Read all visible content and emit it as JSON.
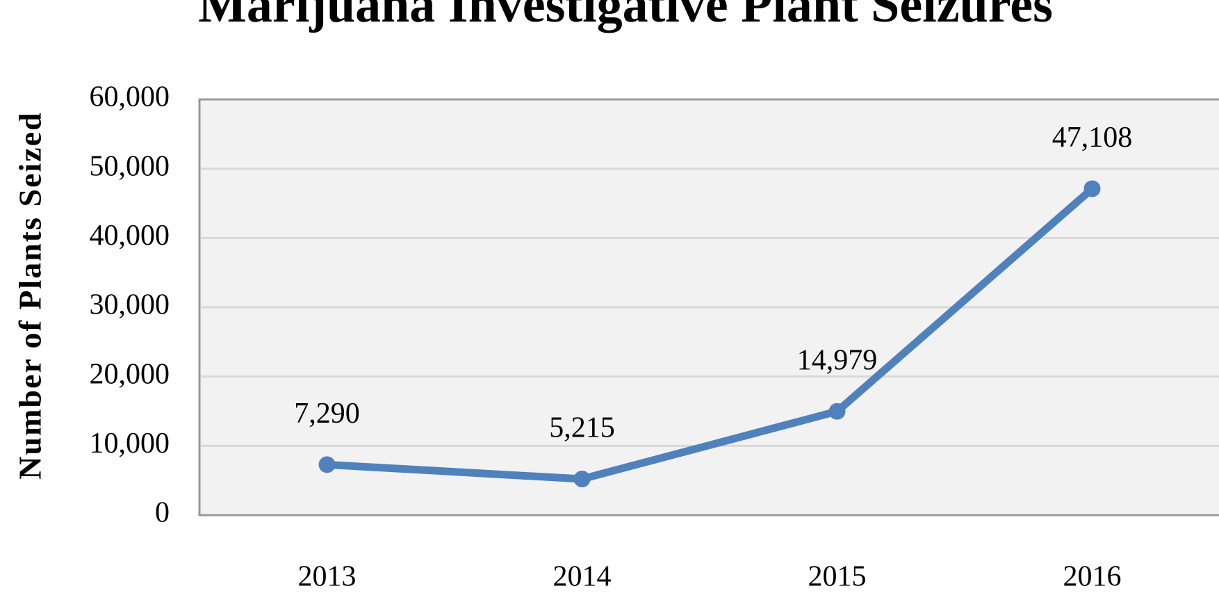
{
  "chart_data": {
    "type": "line",
    "title": "Marijuana Investigative Plant Seizures",
    "y_label": "Number of Plants Seized",
    "categories": [
      "2013",
      "2014",
      "2015",
      "2016"
    ],
    "series": [
      {
        "name": "Plants Seized",
        "color": "#4f81bd",
        "values": [
          7290,
          5215,
          14979,
          47108
        ],
        "value_labels": [
          "7,290",
          "5,215",
          "14,979",
          "47,108"
        ]
      }
    ],
    "ylim": [
      0,
      60000
    ],
    "yticks": [
      0,
      {
        "value": 10000,
        "label": "10,000"
      },
      {
        "value": 20000,
        "label": "20,000"
      },
      {
        "value": 30000,
        "label": "30,000"
      },
      {
        "value": 40000,
        "label": "40,000"
      },
      {
        "value": 50000,
        "label": "50,000"
      },
      {
        "value": 60000,
        "label": "60,000"
      }
    ],
    "grid": true
  }
}
